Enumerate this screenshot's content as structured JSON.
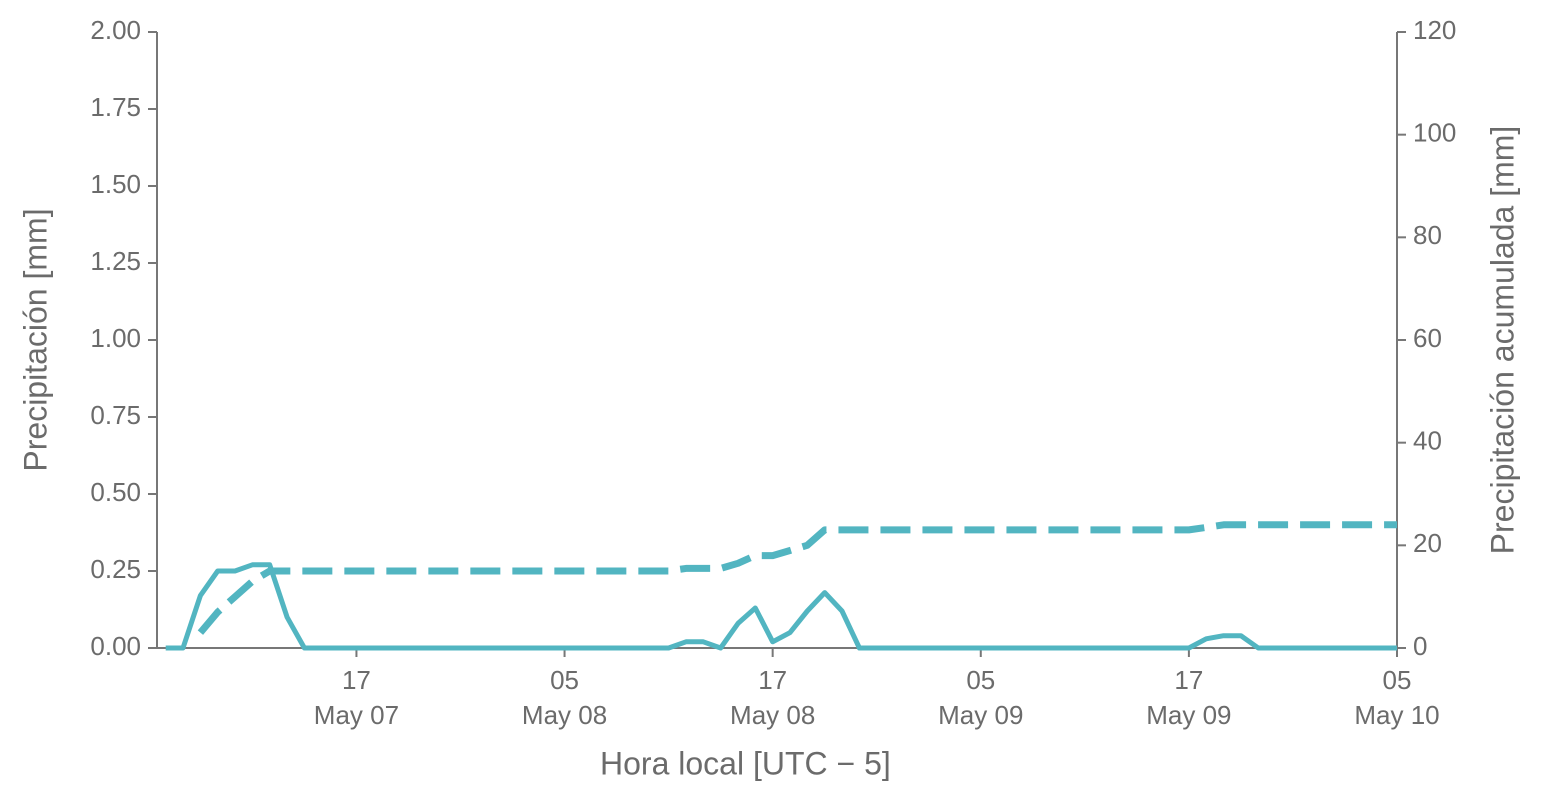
{
  "chart_data": {
    "type": "line",
    "ylabel": "Precipitación [mm]",
    "y2label": "Precipitación acumulada [mm]",
    "xlabel": "Hora local [UTC − 5]",
    "x": [
      "May 07 06:00",
      "May 07 07:00",
      "May 07 08:00",
      "May 07 09:00",
      "May 07 10:00",
      "May 07 11:00",
      "May 07 12:00",
      "May 07 13:00",
      "May 07 14:00",
      "May 07 15:00",
      "May 07 16:00",
      "May 07 17:00",
      "May 07 18:00",
      "May 07 19:00",
      "May 07 20:00",
      "May 07 21:00",
      "May 07 22:00",
      "May 07 23:00",
      "May 08 00:00",
      "May 08 01:00",
      "May 08 02:00",
      "May 08 03:00",
      "May 08 04:00",
      "May 08 05:00",
      "May 08 06:00",
      "May 08 07:00",
      "May 08 08:00",
      "May 08 09:00",
      "May 08 10:00",
      "May 08 11:00",
      "May 08 12:00",
      "May 08 13:00",
      "May 08 14:00",
      "May 08 15:00",
      "May 08 16:00",
      "May 08 17:00",
      "May 08 18:00",
      "May 08 19:00",
      "May 08 20:00",
      "May 08 21:00",
      "May 08 22:00",
      "May 08 23:00",
      "May 09 00:00",
      "May 09 01:00",
      "May 09 02:00",
      "May 09 03:00",
      "May 09 04:00",
      "May 09 05:00",
      "May 09 06:00",
      "May 09 07:00",
      "May 09 08:00",
      "May 09 09:00",
      "May 09 10:00",
      "May 09 11:00",
      "May 09 12:00",
      "May 09 13:00",
      "May 09 14:00",
      "May 09 15:00",
      "May 09 16:00",
      "May 09 17:00",
      "May 09 18:00",
      "May 09 19:00",
      "May 09 20:00",
      "May 09 21:00",
      "May 09 22:00",
      "May 09 23:00",
      "May 10 00:00",
      "May 10 01:00",
      "May 10 02:00",
      "May 10 03:00",
      "May 10 04:00",
      "May 10 05:00"
    ],
    "series": [
      {
        "color": "#52b5c1",
        "dash": false,
        "values": [
          0,
          0,
          0.17,
          0.25,
          0.25,
          0.27,
          0.27,
          0.1,
          0,
          0,
          0,
          0,
          0,
          0,
          0,
          0,
          0,
          0,
          0,
          0,
          0,
          0,
          0,
          0,
          0,
          0,
          0,
          0,
          0,
          0,
          0.02,
          0.02,
          0,
          0.08,
          0.13,
          0.02,
          0.05,
          0.12,
          0.18,
          0.12,
          0,
          0,
          0,
          0,
          0,
          0,
          0,
          0,
          0,
          0,
          0,
          0,
          0,
          0,
          0,
          0,
          0,
          0,
          0,
          0,
          0.03,
          0.04,
          0.04,
          0,
          0,
          0,
          0,
          0,
          0,
          0,
          0,
          0
        ]
      },
      {
        "color": "#52b5c1",
        "dash": true,
        "axis": "y2",
        "values": [
          null,
          null,
          3,
          7,
          10,
          13,
          15,
          15,
          15,
          15,
          15,
          15,
          15,
          15,
          15,
          15,
          15,
          15,
          15,
          15,
          15,
          15,
          15,
          15,
          15,
          15,
          15,
          15,
          15,
          15,
          15.5,
          15.5,
          15.5,
          16.5,
          18,
          18,
          19,
          20,
          23,
          23,
          23,
          23,
          23,
          23,
          23,
          23,
          23,
          23,
          23,
          23,
          23,
          23,
          23,
          23,
          23,
          23,
          23,
          23,
          23,
          23,
          23.5,
          24,
          24,
          24,
          24,
          24,
          24,
          24,
          24,
          24,
          24,
          24
        ]
      }
    ],
    "xlim": [
      "May 07 05:30",
      "May 10 05:00"
    ],
    "xticks": [
      {
        "value": "May 07 17:00",
        "label": [
          "17",
          "May 07"
        ]
      },
      {
        "value": "May 08 05:00",
        "label": [
          "05",
          "May 08"
        ]
      },
      {
        "value": "May 08 17:00",
        "label": [
          "17",
          "May 08"
        ]
      },
      {
        "value": "May 09 05:00",
        "label": [
          "05",
          "May 09"
        ]
      },
      {
        "value": "May 09 17:00",
        "label": [
          "17",
          "May 09"
        ]
      },
      {
        "value": "May 10 05:00",
        "label": [
          "05",
          "May 10"
        ]
      }
    ],
    "ylim": [
      0,
      2
    ],
    "yticks": [
      {
        "value": 0,
        "label": "0.00"
      },
      {
        "value": 0.25,
        "label": "0.25"
      },
      {
        "value": 0.5,
        "label": "0.50"
      },
      {
        "value": 0.75,
        "label": "0.75"
      },
      {
        "value": 1,
        "label": "1.00"
      },
      {
        "value": 1.25,
        "label": "1.25"
      },
      {
        "value": 1.5,
        "label": "1.50"
      },
      {
        "value": 1.75,
        "label": "1.75"
      },
      {
        "value": 2,
        "label": "2.00"
      }
    ],
    "y2lim": [
      0,
      120
    ],
    "y2ticks": [
      0,
      20,
      40,
      60,
      80,
      100,
      120
    ]
  }
}
